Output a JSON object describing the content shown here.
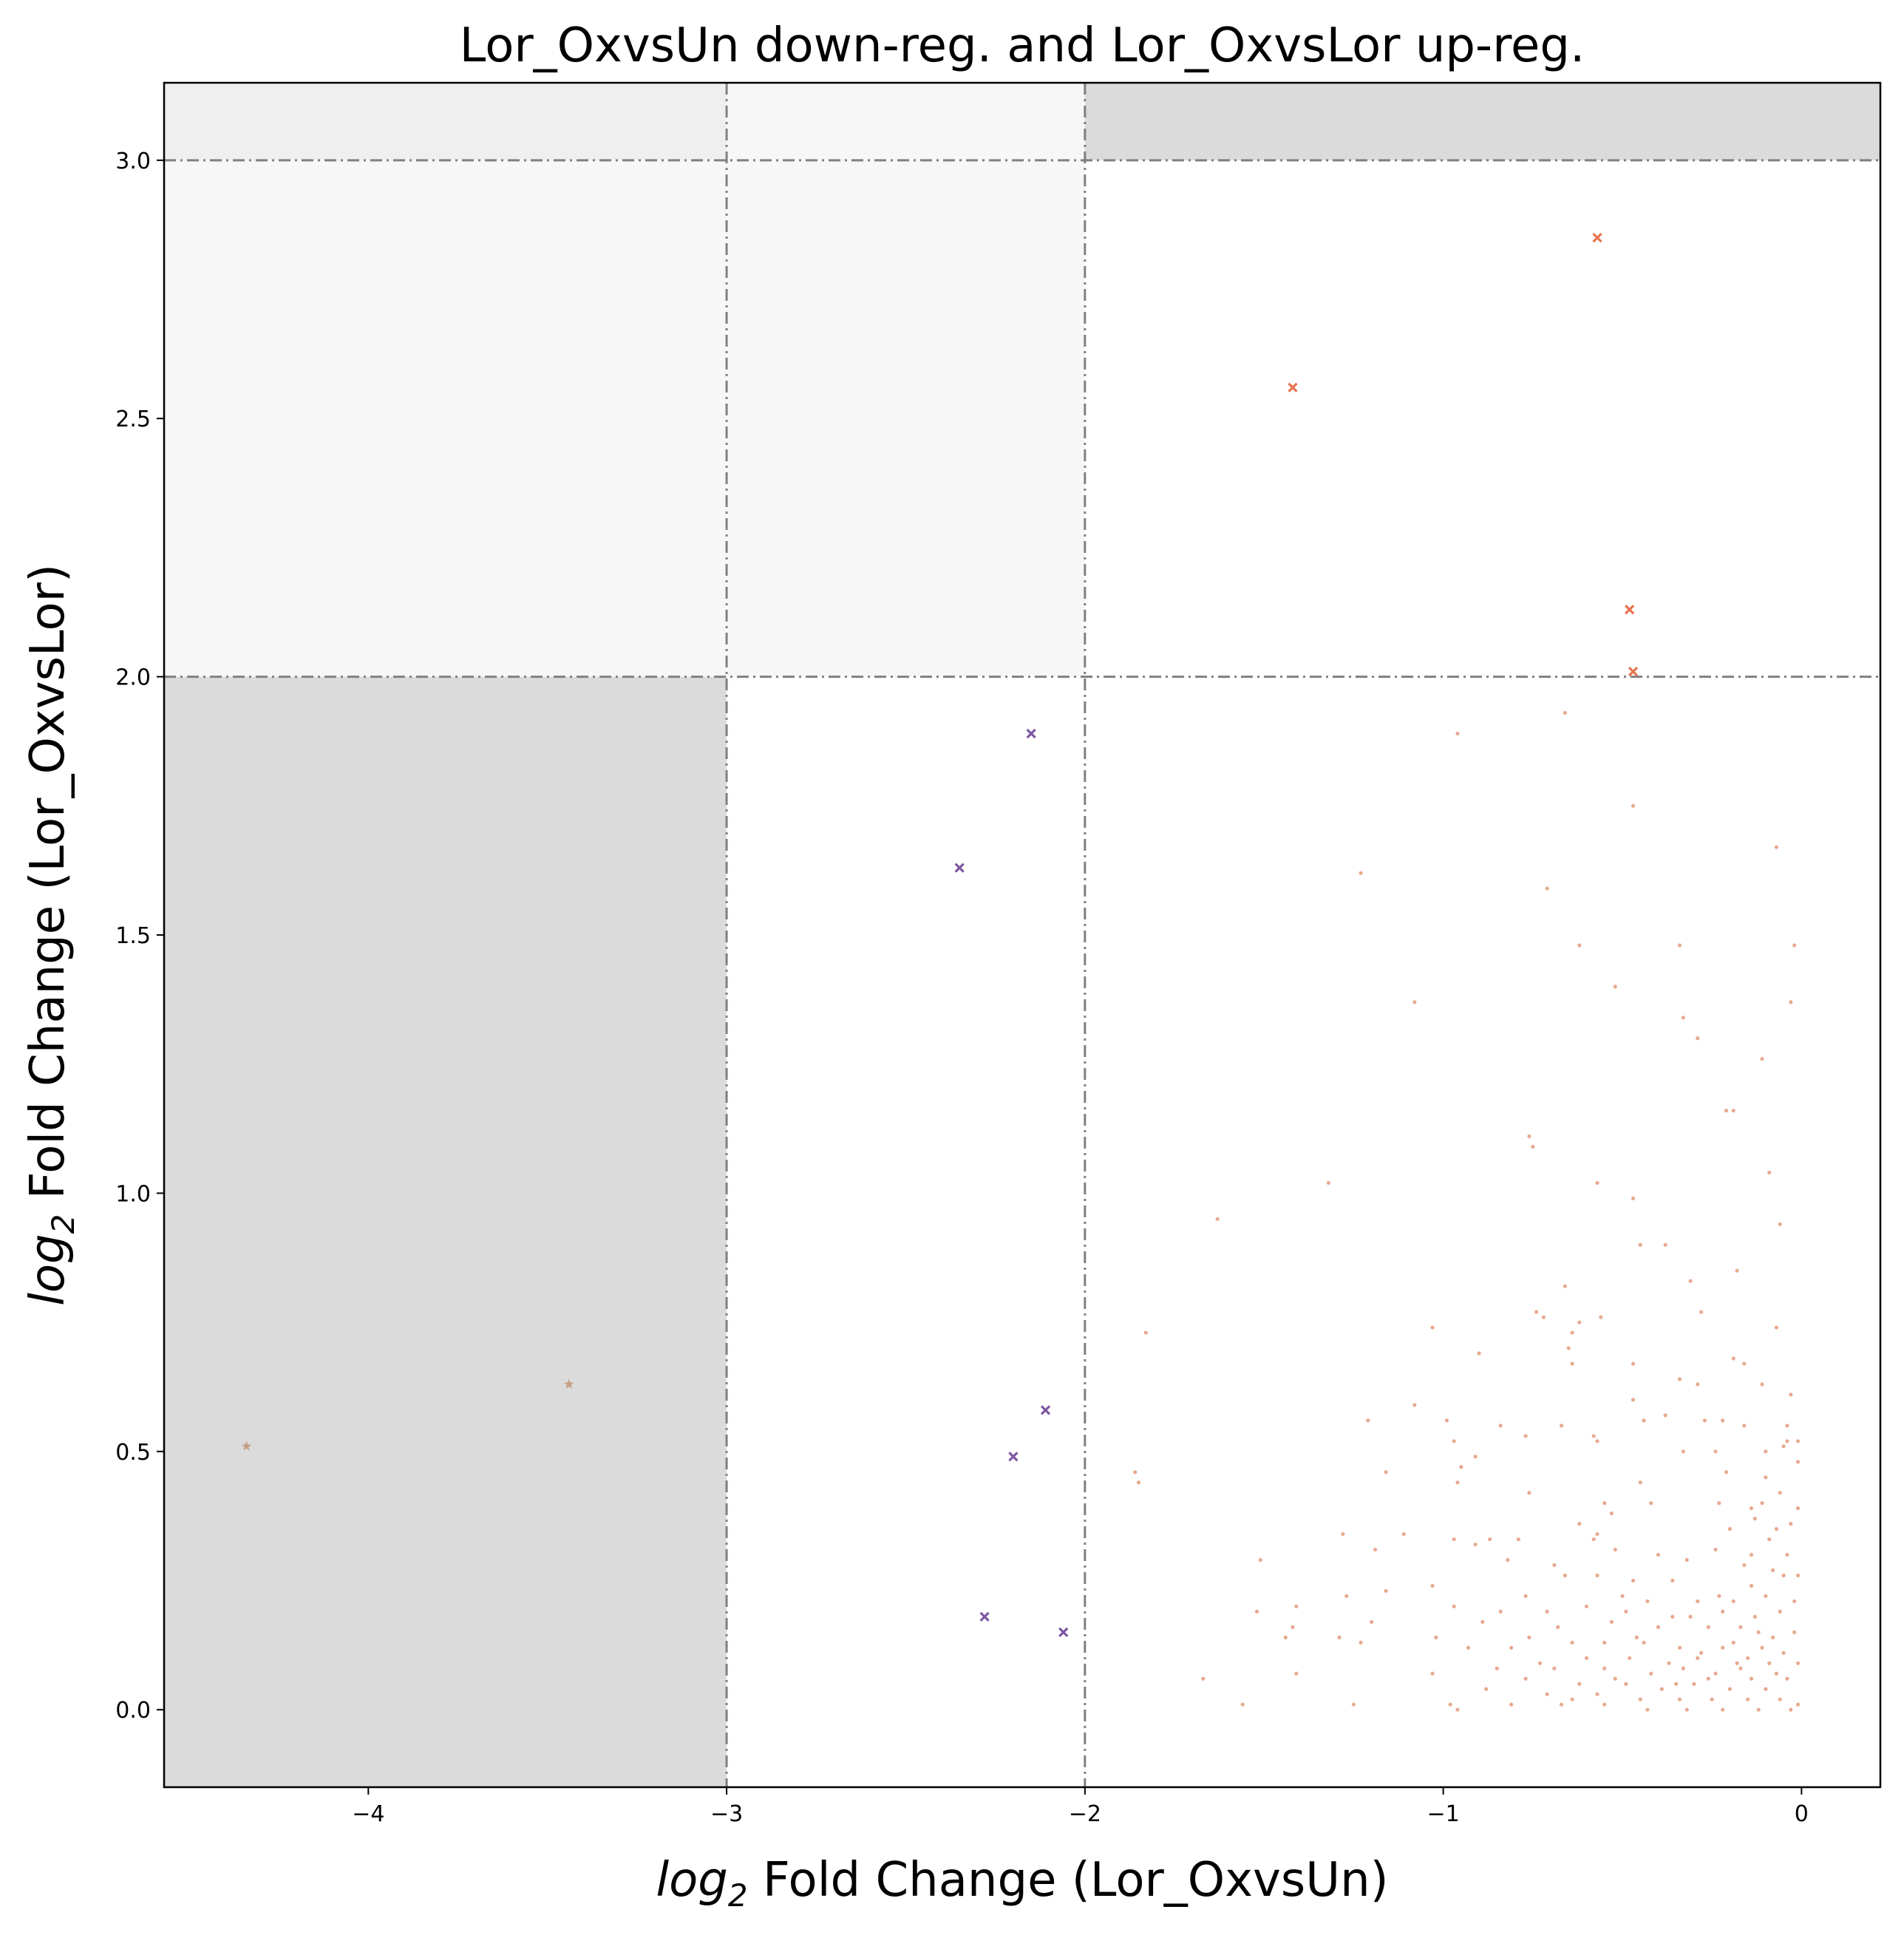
{
  "chart_data": {
    "type": "scatter",
    "title": "Lor_OxvsUn down-reg. and Lor_OxvsLor up-reg.",
    "xlabel": {
      "base": "log",
      "sub": "2",
      "rest": " Fold Change (Lor_OxvsUn)"
    },
    "ylabel": {
      "base": "log",
      "sub": "2",
      "rest": " Fold Change (Lor_OxvsLor)"
    },
    "xlim": [
      -4.57,
      0.22
    ],
    "ylim": [
      -0.15,
      3.15
    ],
    "xticks": [
      -4,
      -3,
      -2,
      -1,
      0
    ],
    "xtick_labels": [
      "−4",
      "−3",
      "−2",
      "−1",
      "0"
    ],
    "yticks": [
      0.0,
      0.5,
      1.0,
      1.5,
      2.0,
      2.5,
      3.0
    ],
    "ytick_labels": [
      "0.0",
      "0.5",
      "1.0",
      "1.5",
      "2.0",
      "2.5",
      "3.0"
    ],
    "grid": false,
    "thresholds": {
      "x": [
        -3,
        -2
      ],
      "y": [
        2,
        3
      ]
    },
    "regions": [
      {
        "x": [
          -4.57,
          -3
        ],
        "y": [
          -0.15,
          2
        ],
        "color": "#dbdbdb"
      },
      {
        "x": [
          -4.57,
          -3
        ],
        "y": [
          2,
          3
        ],
        "color": "#f7f7f7"
      },
      {
        "x": [
          -3,
          -2
        ],
        "y": [
          2,
          3.15
        ],
        "color": "#f7f7f7"
      },
      {
        "x": [
          -4.57,
          -3
        ],
        "y": [
          3,
          3.15
        ],
        "color": "#efefef"
      },
      {
        "x": [
          -2,
          0.22
        ],
        "y": [
          3,
          3.15
        ],
        "color": "#dbdbdb"
      }
    ],
    "colors": {
      "small": "#e39b7d",
      "up": "#e8734f",
      "mid": "#7e57a3",
      "far": "#c4a085",
      "line": "#808080"
    },
    "series": [
      {
        "marker": "cross",
        "color_key": "up",
        "points": [
          [
            -0.57,
            2.85
          ],
          [
            -1.42,
            2.56
          ],
          [
            -0.48,
            2.13
          ],
          [
            -0.47,
            2.01
          ]
        ]
      },
      {
        "marker": "cross",
        "color_key": "mid",
        "points": [
          [
            -2.15,
            1.89
          ],
          [
            -2.35,
            1.63
          ],
          [
            -2.11,
            0.58
          ],
          [
            -2.2,
            0.49
          ],
          [
            -2.28,
            0.18
          ],
          [
            -2.06,
            0.15
          ]
        ]
      },
      {
        "marker": "star",
        "color_key": "far",
        "points": [
          [
            -4.34,
            0.51
          ],
          [
            -3.44,
            0.63
          ]
        ]
      },
      {
        "marker": "dot",
        "color_key": "small",
        "points": [
          [
            -0.66,
            1.93
          ],
          [
            -0.96,
            1.89
          ],
          [
            -0.47,
            1.75
          ],
          [
            -0.07,
            1.67
          ],
          [
            -1.23,
            1.62
          ],
          [
            -0.71,
            1.59
          ],
          [
            -0.62,
            1.48
          ],
          [
            -0.34,
            1.48
          ],
          [
            -0.02,
            1.48
          ],
          [
            -0.52,
            1.4
          ],
          [
            -1.08,
            1.37
          ],
          [
            -0.03,
            1.37
          ],
          [
            -0.33,
            1.34
          ],
          [
            -0.29,
            1.3
          ],
          [
            -0.11,
            1.26
          ],
          [
            -0.21,
            1.16
          ],
          [
            -0.19,
            1.16
          ],
          [
            -0.76,
            1.11
          ],
          [
            -0.75,
            1.09
          ],
          [
            -0.09,
            1.04
          ],
          [
            -1.32,
            1.02
          ],
          [
            -0.57,
            1.02
          ],
          [
            -0.47,
            0.99
          ],
          [
            -1.63,
            0.95
          ],
          [
            -0.06,
            0.94
          ],
          [
            -0.45,
            0.9
          ],
          [
            -0.38,
            0.9
          ],
          [
            -0.31,
            0.83
          ],
          [
            -0.66,
            0.82
          ],
          [
            -0.74,
            0.77
          ],
          [
            -0.18,
            0.85
          ],
          [
            -0.72,
            0.76
          ],
          [
            -0.62,
            0.75
          ],
          [
            -0.64,
            0.73
          ],
          [
            -1.03,
            0.74
          ],
          [
            -0.28,
            0.77
          ],
          [
            -0.07,
            0.74
          ],
          [
            -1.83,
            0.73
          ],
          [
            -0.65,
            0.7
          ],
          [
            -0.56,
            0.76
          ],
          [
            -0.9,
            0.69
          ],
          [
            -0.19,
            0.68
          ],
          [
            -0.16,
            0.67
          ],
          [
            -0.47,
            0.67
          ],
          [
            -0.64,
            0.67
          ],
          [
            -0.34,
            0.64
          ],
          [
            -0.29,
            0.63
          ],
          [
            -0.03,
            0.61
          ],
          [
            -0.11,
            0.63
          ],
          [
            -0.67,
            0.55
          ],
          [
            -1.08,
            0.59
          ],
          [
            -0.47,
            0.6
          ],
          [
            -0.38,
            0.57
          ],
          [
            -0.22,
            0.56
          ],
          [
            -0.16,
            0.55
          ],
          [
            -0.99,
            0.56
          ],
          [
            -1.21,
            0.56
          ],
          [
            -0.84,
            0.55
          ],
          [
            -0.44,
            0.56
          ],
          [
            -0.27,
            0.56
          ],
          [
            -0.58,
            0.53
          ],
          [
            -0.57,
            0.52
          ],
          [
            -0.77,
            0.53
          ],
          [
            -0.97,
            0.52
          ],
          [
            -0.05,
            0.51
          ],
          [
            -0.04,
            0.52
          ],
          [
            -0.01,
            0.52
          ],
          [
            -0.91,
            0.49
          ],
          [
            -0.95,
            0.47
          ],
          [
            -0.33,
            0.5
          ],
          [
            -1.16,
            0.46
          ],
          [
            -1.86,
            0.46
          ],
          [
            -1.85,
            0.44
          ],
          [
            -0.01,
            0.48
          ],
          [
            -0.1,
            0.45
          ],
          [
            -0.76,
            0.42
          ],
          [
            -0.45,
            0.44
          ],
          [
            -0.96,
            0.44
          ],
          [
            -0.23,
            0.4
          ],
          [
            -0.14,
            0.39
          ],
          [
            -0.55,
            0.4
          ],
          [
            -0.53,
            0.38
          ],
          [
            -0.11,
            0.4
          ],
          [
            -0.01,
            0.39
          ],
          [
            -0.42,
            0.4
          ],
          [
            -0.2,
            0.35
          ],
          [
            -0.62,
            0.36
          ],
          [
            -0.07,
            0.35
          ],
          [
            -0.57,
            0.34
          ],
          [
            -0.58,
            0.33
          ],
          [
            -0.87,
            0.33
          ],
          [
            -1.28,
            0.34
          ],
          [
            -1.11,
            0.34
          ],
          [
            -1.19,
            0.31
          ],
          [
            -0.97,
            0.33
          ],
          [
            -0.79,
            0.33
          ],
          [
            -0.91,
            0.32
          ],
          [
            -0.24,
            0.31
          ],
          [
            -0.14,
            0.3
          ],
          [
            -0.52,
            0.31
          ],
          [
            -0.32,
            0.29
          ],
          [
            -0.82,
            0.29
          ],
          [
            -1.51,
            0.29
          ],
          [
            -0.69,
            0.28
          ],
          [
            -0.08,
            0.27
          ],
          [
            -0.66,
            0.26
          ],
          [
            -0.57,
            0.26
          ],
          [
            -0.47,
            0.25
          ],
          [
            -0.14,
            0.24
          ],
          [
            -0.36,
            0.25
          ],
          [
            -0.05,
            0.26
          ],
          [
            -0.01,
            0.26
          ],
          [
            -1.03,
            0.24
          ],
          [
            -1.27,
            0.22
          ],
          [
            -1.16,
            0.23
          ],
          [
            -0.77,
            0.22
          ],
          [
            -0.43,
            0.21
          ],
          [
            -0.29,
            0.21
          ],
          [
            -0.19,
            0.21
          ],
          [
            -0.1,
            0.22
          ],
          [
            -0.02,
            0.21
          ],
          [
            -0.6,
            0.2
          ],
          [
            -0.71,
            0.19
          ],
          [
            -0.49,
            0.19
          ],
          [
            -1.41,
            0.2
          ],
          [
            -0.97,
            0.2
          ],
          [
            -0.84,
            0.19
          ],
          [
            -0.22,
            0.19
          ],
          [
            -0.31,
            0.18
          ],
          [
            -0.13,
            0.18
          ],
          [
            -0.06,
            0.19
          ],
          [
            -1.52,
            0.19
          ],
          [
            -1.2,
            0.17
          ],
          [
            -0.89,
            0.17
          ],
          [
            -0.68,
            0.16
          ],
          [
            -0.53,
            0.17
          ],
          [
            -0.4,
            0.16
          ],
          [
            -0.26,
            0.16
          ],
          [
            -0.17,
            0.16
          ],
          [
            -0.02,
            0.15
          ],
          [
            -1.42,
            0.16
          ],
          [
            -1.44,
            0.14
          ],
          [
            -1.29,
            0.14
          ],
          [
            -1.02,
            0.14
          ],
          [
            -0.76,
            0.14
          ],
          [
            -0.64,
            0.13
          ],
          [
            -0.55,
            0.13
          ],
          [
            -0.44,
            0.13
          ],
          [
            -0.34,
            0.12
          ],
          [
            -0.22,
            0.12
          ],
          [
            -0.11,
            0.12
          ],
          [
            -0.05,
            0.11
          ],
          [
            -1.23,
            0.13
          ],
          [
            -0.93,
            0.12
          ],
          [
            -0.81,
            0.12
          ],
          [
            -0.6,
            0.1
          ],
          [
            -0.48,
            0.1
          ],
          [
            -0.37,
            0.09
          ],
          [
            -0.29,
            0.1
          ],
          [
            -0.18,
            0.09
          ],
          [
            -0.09,
            0.09
          ],
          [
            -0.01,
            0.09
          ],
          [
            -0.69,
            0.08
          ],
          [
            -0.55,
            0.08
          ],
          [
            -0.42,
            0.07
          ],
          [
            -0.33,
            0.08
          ],
          [
            -0.24,
            0.07
          ],
          [
            -0.14,
            0.06
          ],
          [
            -0.04,
            0.06
          ],
          [
            -1.41,
            0.07
          ],
          [
            -1.03,
            0.07
          ],
          [
            -0.77,
            0.06
          ],
          [
            -0.62,
            0.05
          ],
          [
            -0.49,
            0.05
          ],
          [
            -0.39,
            0.04
          ],
          [
            -0.3,
            0.05
          ],
          [
            -0.2,
            0.04
          ],
          [
            -0.1,
            0.04
          ],
          [
            -1.67,
            0.06
          ],
          [
            -0.88,
            0.04
          ],
          [
            -0.71,
            0.03
          ],
          [
            -0.57,
            0.03
          ],
          [
            -0.45,
            0.02
          ],
          [
            -0.34,
            0.02
          ],
          [
            -0.25,
            0.02
          ],
          [
            -0.15,
            0.02
          ],
          [
            -0.06,
            0.02
          ],
          [
            -0.01,
            0.01
          ],
          [
            -1.56,
            0.01
          ],
          [
            -1.25,
            0.01
          ],
          [
            -0.98,
            0.01
          ],
          [
            -0.96,
            0.0
          ],
          [
            -0.81,
            0.01
          ],
          [
            -0.67,
            0.01
          ],
          [
            -0.55,
            0.01
          ],
          [
            -0.43,
            0.0
          ],
          [
            -0.32,
            0.0
          ],
          [
            -0.22,
            0.0
          ],
          [
            -0.12,
            0.0
          ],
          [
            -0.03,
            0.0
          ],
          [
            -0.28,
            0.11
          ],
          [
            -0.19,
            0.13
          ],
          [
            -0.08,
            0.14
          ],
          [
            -0.15,
            0.1
          ],
          [
            -0.35,
            0.05
          ],
          [
            -0.26,
            0.06
          ],
          [
            -0.17,
            0.08
          ],
          [
            -0.07,
            0.07
          ],
          [
            -0.12,
            0.15
          ],
          [
            -0.23,
            0.22
          ],
          [
            -0.04,
            0.3
          ],
          [
            -0.16,
            0.28
          ],
          [
            -0.09,
            0.33
          ],
          [
            -0.03,
            0.36
          ],
          [
            -0.13,
            0.37
          ],
          [
            -0.06,
            0.42
          ],
          [
            -0.21,
            0.46
          ],
          [
            -0.1,
            0.5
          ],
          [
            -0.04,
            0.55
          ],
          [
            -0.24,
            0.5
          ],
          [
            -0.4,
            0.3
          ],
          [
            -0.5,
            0.22
          ],
          [
            -0.36,
            0.18
          ],
          [
            -0.46,
            0.14
          ],
          [
            -0.52,
            0.06
          ],
          [
            -0.64,
            0.02
          ],
          [
            -0.73,
            0.09
          ],
          [
            -0.85,
            0.08
          ]
        ]
      }
    ]
  }
}
